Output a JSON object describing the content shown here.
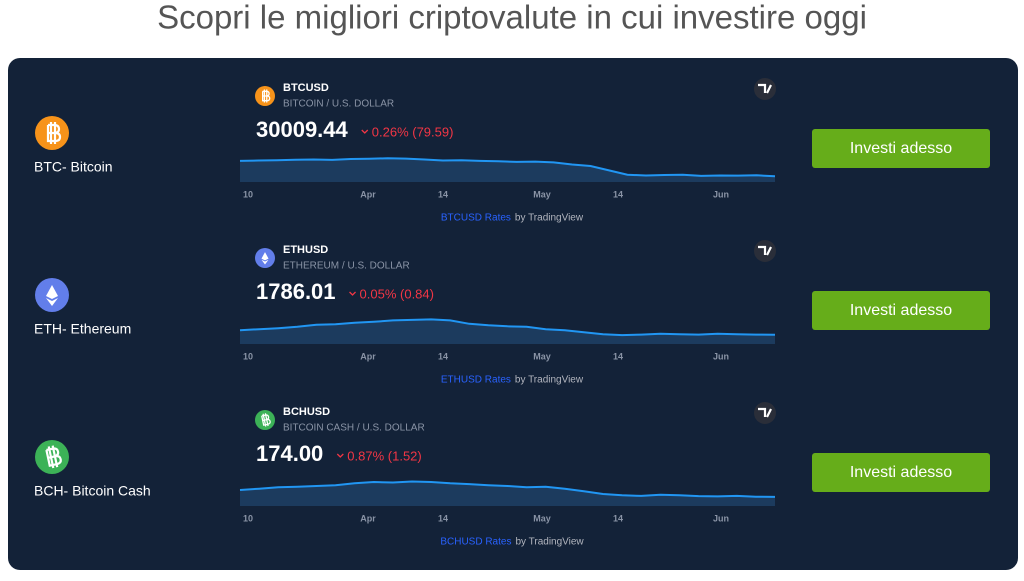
{
  "header": {
    "title": "Scopri le migliori criptovalute in cui investire oggi"
  },
  "rows": [
    {
      "label": "BTC- Bitcoin",
      "color": "#f7931a",
      "symbol": "BTCUSD",
      "description": "BITCOIN / U.S. DOLLAR",
      "price": "30009.44",
      "change": "0.26% (79.59)",
      "x_labels": [
        "10",
        "Apr",
        "14",
        "May",
        "14",
        "Jun"
      ],
      "sparkline": {
        "values": [
          40500,
          40800,
          41000,
          41300,
          41500,
          41200,
          41800,
          42000,
          42300,
          42100,
          41500,
          40800,
          41000,
          40500,
          40200,
          39800,
          40000,
          39500,
          38000,
          37000,
          34000,
          31000,
          30500,
          30800,
          31000,
          30200,
          30500,
          30400,
          30600,
          30009.44
        ],
        "ylim": [
          26000,
          48000
        ]
      },
      "rates_link": "BTCUSD Rates",
      "attribution": "by TradingView",
      "button": "Investi adesso"
    },
    {
      "label": "ETH- Ethereum",
      "color": "#627eea",
      "symbol": "ETHUSD",
      "description": "ETHEREUM / U.S. DOLLAR",
      "price": "1786.01",
      "change": "0.05% (0.84)",
      "x_labels": [
        "10",
        "Apr",
        "14",
        "May",
        "14",
        "Jun"
      ],
      "sparkline": {
        "values": [
          1880,
          1900,
          1920,
          1950,
          1990,
          2000,
          2030,
          2050,
          2080,
          2090,
          2100,
          2080,
          2010,
          1980,
          1960,
          1950,
          1900,
          1880,
          1840,
          1800,
          1780,
          1790,
          1810,
          1800,
          1790,
          1810,
          1800,
          1790,
          1786.01
        ],
        "ylim": [
          1600,
          2250
        ]
      },
      "rates_link": "ETHUSD Rates",
      "attribution": "by TradingView",
      "button": "Investi adesso"
    },
    {
      "label": "BCH- Bitcoin Cash",
      "color": "#3cb257",
      "symbol": "BCHUSD",
      "description": "BITCOIN CASH / U.S. DOLLAR",
      "price": "174.00",
      "change": "0.87% (1.52)",
      "x_labels": [
        "10",
        "Apr",
        "14",
        "May",
        "14",
        "Jun"
      ],
      "sparkline": {
        "values": [
          200,
          205,
          210,
          212,
          215,
          218,
          225,
          230,
          228,
          232,
          230,
          225,
          222,
          218,
          215,
          210,
          212,
          205,
          195,
          185,
          180,
          178,
          182,
          180,
          177,
          176,
          178,
          175,
          174
        ],
        "ylim": [
          140,
          260
        ]
      },
      "rates_link": "BCHUSD Rates",
      "attribution": "by TradingView",
      "button": "Investi adesso"
    }
  ]
}
